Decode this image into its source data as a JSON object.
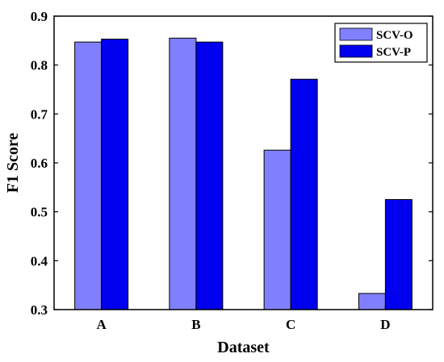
{
  "chart_data": {
    "type": "bar",
    "categories": [
      "A",
      "B",
      "C",
      "D"
    ],
    "series": [
      {
        "name": "SCV-O",
        "values": [
          0.847,
          0.855,
          0.626,
          0.333
        ],
        "color": "#8080ff"
      },
      {
        "name": "SCV-P",
        "values": [
          0.853,
          0.847,
          0.771,
          0.525
        ],
        "color": "#0000ee"
      }
    ],
    "title": "",
    "xlabel": "Dataset",
    "ylabel": "F1 Score",
    "ylim": [
      0.3,
      0.9
    ],
    "yticks": [
      "0.3",
      "0.4",
      "0.5",
      "0.6",
      "0.7",
      "0.8",
      "0.9"
    ],
    "grid": false,
    "legend_position": "top-right"
  }
}
